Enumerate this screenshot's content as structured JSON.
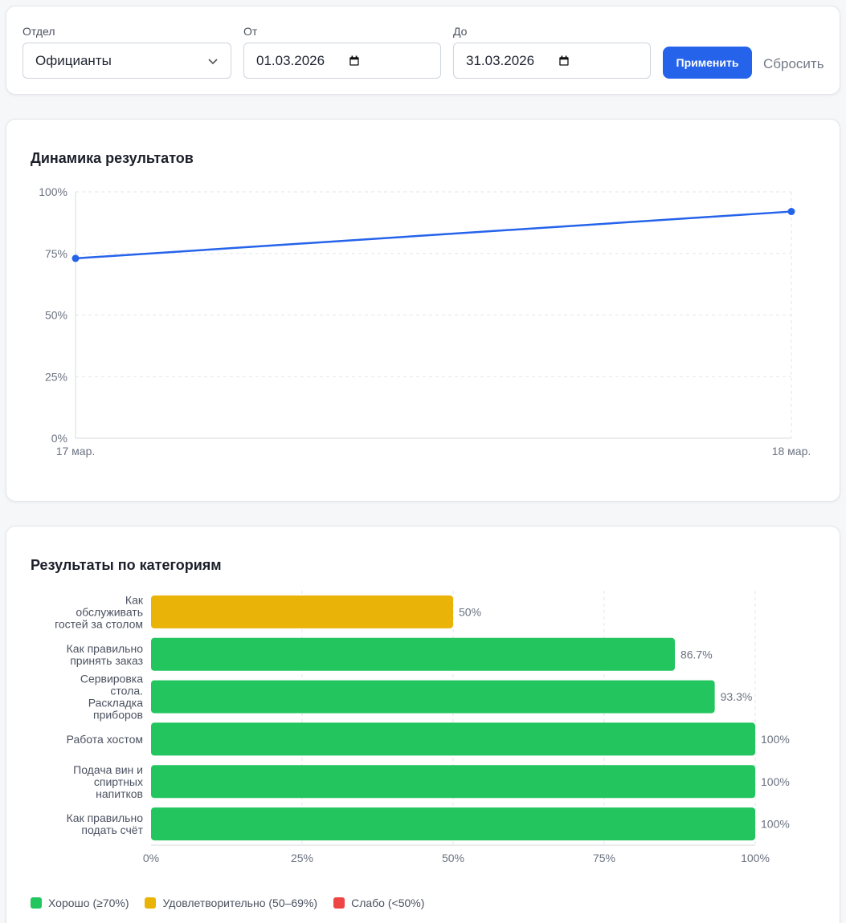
{
  "filters": {
    "department": {
      "label": "Отдел",
      "value": "Официанты"
    },
    "from": {
      "label": "От",
      "value": "01.03.2026"
    },
    "to": {
      "label": "До",
      "value": "31.03.2026"
    },
    "apply_label": "Применить",
    "reset_label": "Сбросить"
  },
  "colors": {
    "accent": "#2563eb",
    "good": "#22c55e",
    "ok": "#eab308",
    "weak": "#ef4444"
  },
  "trend": {
    "title": "Динамика результатов"
  },
  "categories": {
    "title": "Результаты по категориям",
    "legend": [
      {
        "label": "Хорошо (≥70%)",
        "color": "#22c55e"
      },
      {
        "label": "Удовлетворительно (50–69%)",
        "color": "#eab308"
      },
      {
        "label": "Слабо (<50%)",
        "color": "#ef4444"
      }
    ]
  },
  "chart_data": [
    {
      "type": "line",
      "title": "Динамика результатов",
      "x": [
        "17 мар.",
        "18 мар."
      ],
      "series": [
        {
          "values": [
            73,
            92
          ]
        }
      ],
      "ylim": [
        0,
        100
      ],
      "yticks": [
        "0%",
        "25%",
        "50%",
        "75%",
        "100%"
      ],
      "grid": true
    },
    {
      "type": "bar",
      "orientation": "horizontal",
      "title": "Результаты по категориям",
      "categories": [
        "Как обслуживать гостей за столом",
        "Как правильно принять заказ",
        "Сервировка стола. Раскладка приборов",
        "Работа хостом",
        "Подача вин и спиртных напитков",
        "Как правильно подать счёт"
      ],
      "category_lines": [
        [
          "Как",
          "обслуживать",
          "гостей за столом"
        ],
        [
          "Как правильно",
          "принять заказ"
        ],
        [
          "Сервировка",
          "стола.",
          "Раскладка",
          "приборов"
        ],
        [
          "Работа хостом"
        ],
        [
          "Подача вин и",
          "спиртных",
          "напитков"
        ],
        [
          "Как правильно",
          "подать счёт"
        ]
      ],
      "values": [
        50,
        86.7,
        93.3,
        100,
        100,
        100
      ],
      "value_labels": [
        "50%",
        "86.7%",
        "93.3%",
        "100%",
        "100%",
        "100%"
      ],
      "xlim": [
        0,
        100
      ],
      "xticks": [
        "0%",
        "25%",
        "50%",
        "75%",
        "100%"
      ],
      "grid": true,
      "legend_position": "bottom-left"
    }
  ]
}
